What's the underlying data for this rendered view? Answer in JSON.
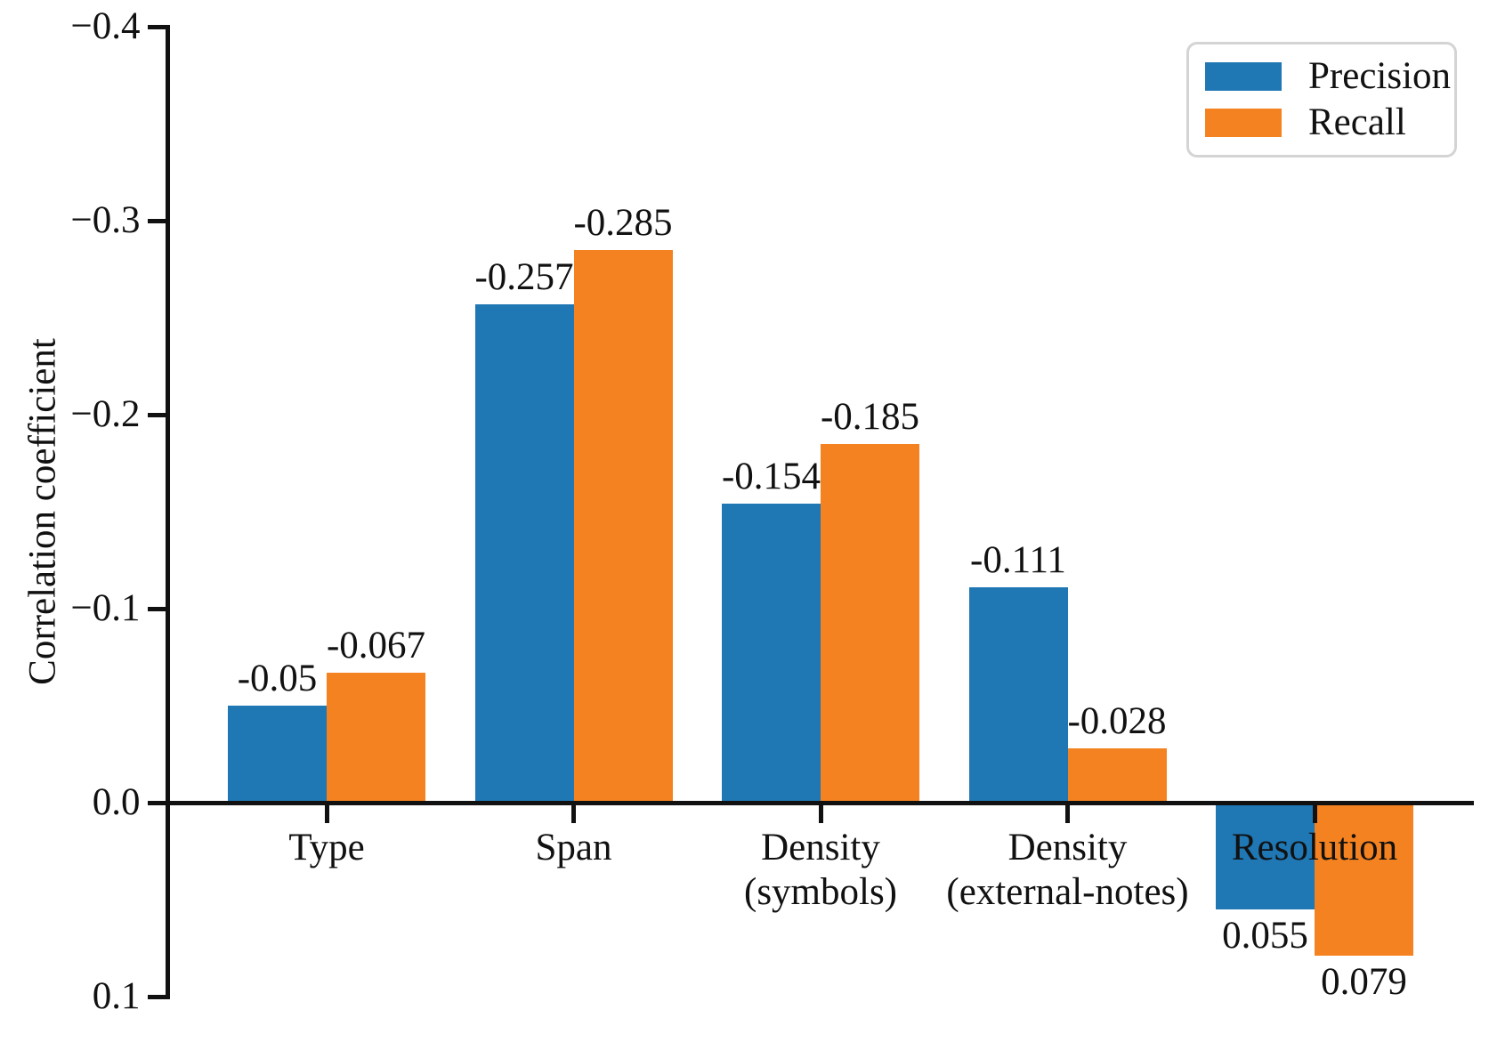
{
  "chart_data": {
    "type": "bar",
    "title": "",
    "xlabel": "",
    "ylabel": "Correlation coefficient",
    "axis": {
      "y_inverted": true,
      "ylim": [
        -0.4,
        0.1
      ],
      "grid": false,
      "yticks": [
        {
          "value": -0.4,
          "label": "−0.4"
        },
        {
          "value": -0.3,
          "label": "−0.3"
        },
        {
          "value": -0.2,
          "label": "−0.2"
        },
        {
          "value": -0.1,
          "label": "−0.1"
        },
        {
          "value": 0.0,
          "label": "0.0"
        },
        {
          "value": 0.1,
          "label": "0.1"
        }
      ]
    },
    "categories": [
      {
        "id": "type",
        "lines": [
          "Type"
        ]
      },
      {
        "id": "span",
        "lines": [
          "Span"
        ]
      },
      {
        "id": "density-symbols",
        "lines": [
          "Density",
          "(symbols)"
        ]
      },
      {
        "id": "density-external-notes",
        "lines": [
          "Density",
          "(external-notes)"
        ]
      },
      {
        "id": "resolution",
        "lines": [
          "Resolution"
        ]
      }
    ],
    "series": [
      {
        "name": "Precision",
        "color": "#1f77b4",
        "values": [
          -0.05,
          -0.257,
          -0.154,
          -0.111,
          0.055
        ],
        "value_labels": [
          "-0.05",
          "-0.257",
          "-0.154",
          "-0.111",
          "0.055"
        ]
      },
      {
        "name": "Recall",
        "color": "#f58220",
        "values": [
          -0.067,
          -0.285,
          -0.185,
          -0.028,
          0.079
        ],
        "value_labels": [
          "-0.067",
          "-0.285",
          "-0.185",
          "-0.028",
          "0.079"
        ]
      }
    ],
    "legend": {
      "position": "top-right",
      "entries": [
        "Precision",
        "Recall"
      ]
    }
  }
}
